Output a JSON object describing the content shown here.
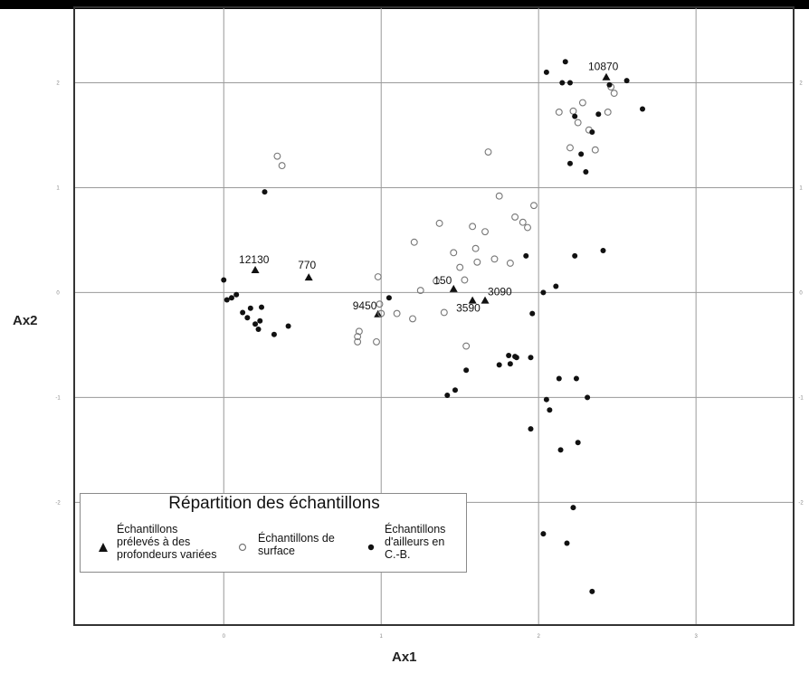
{
  "chart_data": {
    "type": "scatter",
    "xlabel": "Ax1",
    "ylabel": "Ax2",
    "xlim": [
      -0.95,
      3.62
    ],
    "ylim": [
      -3.17,
      2.72
    ],
    "x_ticks": [
      "0",
      "1",
      "2",
      "3"
    ],
    "y_ticks": [
      "2",
      "1",
      "0",
      "-1",
      "-2"
    ],
    "grid": true,
    "legend": {
      "title": "Répartition des échantillons",
      "placement": "bottom-left"
    },
    "series": [
      {
        "name": "Échantillons prélevés à des profondeurs variées",
        "marker": "triangle",
        "color": "#111111",
        "points": [
          {
            "x": 0.2,
            "y": 0.21,
            "label": "12130"
          },
          {
            "x": 0.54,
            "y": 0.14,
            "label": "770"
          },
          {
            "x": 0.98,
            "y": -0.21,
            "label": "9450"
          },
          {
            "x": 1.46,
            "y": 0.03,
            "label": "150"
          },
          {
            "x": 1.58,
            "y": -0.08,
            "label": "3590"
          },
          {
            "x": 1.66,
            "y": -0.08,
            "label": "3090"
          },
          {
            "x": 2.43,
            "y": 2.05,
            "label": "10870"
          }
        ]
      },
      {
        "name": "Échantillons de surface",
        "marker": "open-circle",
        "color": "#777777",
        "points": [
          {
            "x": 0.85,
            "y": -0.42
          },
          {
            "x": 0.85,
            "y": -0.47
          },
          {
            "x": 0.86,
            "y": -0.37
          },
          {
            "x": 0.97,
            "y": -0.47
          },
          {
            "x": 0.98,
            "y": 0.15
          },
          {
            "x": 0.99,
            "y": -0.11
          },
          {
            "x": 1.0,
            "y": -0.2
          },
          {
            "x": 1.1,
            "y": -0.2
          },
          {
            "x": 1.2,
            "y": -0.25
          },
          {
            "x": 1.21,
            "y": 0.48
          },
          {
            "x": 1.25,
            "y": 0.02
          },
          {
            "x": 1.35,
            "y": 0.11
          },
          {
            "x": 1.4,
            "y": -0.19
          },
          {
            "x": 1.46,
            "y": 0.38
          },
          {
            "x": 1.37,
            "y": 0.66
          },
          {
            "x": 1.5,
            "y": 0.24
          },
          {
            "x": 1.53,
            "y": 0.12
          },
          {
            "x": 1.54,
            "y": -0.51
          },
          {
            "x": 1.58,
            "y": 0.63
          },
          {
            "x": 1.6,
            "y": 0.42
          },
          {
            "x": 1.61,
            "y": 0.29
          },
          {
            "x": 1.66,
            "y": 0.58
          },
          {
            "x": 1.68,
            "y": 1.34
          },
          {
            "x": 1.72,
            "y": 0.32
          },
          {
            "x": 1.75,
            "y": 0.92
          },
          {
            "x": 1.82,
            "y": 0.28
          },
          {
            "x": 1.85,
            "y": 0.72
          },
          {
            "x": 1.9,
            "y": 0.67
          },
          {
            "x": 1.93,
            "y": 0.62
          },
          {
            "x": 1.97,
            "y": 0.83
          },
          {
            "x": 0.34,
            "y": 1.3
          },
          {
            "x": 0.37,
            "y": 1.21
          },
          {
            "x": 2.22,
            "y": 1.73
          },
          {
            "x": 2.25,
            "y": 1.62
          },
          {
            "x": 2.28,
            "y": 1.81
          },
          {
            "x": 2.32,
            "y": 1.55
          },
          {
            "x": 2.36,
            "y": 1.36
          },
          {
            "x": 2.44,
            "y": 1.72
          },
          {
            "x": 2.48,
            "y": 1.9
          },
          {
            "x": 2.46,
            "y": 1.96
          },
          {
            "x": 2.2,
            "y": 1.38
          },
          {
            "x": 2.13,
            "y": 1.72
          }
        ]
      },
      {
        "name": "Échantillons d'ailleurs en C.-B.",
        "marker": "filled-circle",
        "color": "#111111",
        "points": [
          {
            "x": 0.0,
            "y": 0.12
          },
          {
            "x": 0.02,
            "y": -0.07
          },
          {
            "x": 0.05,
            "y": -0.05
          },
          {
            "x": 0.08,
            "y": -0.02
          },
          {
            "x": 0.12,
            "y": -0.19
          },
          {
            "x": 0.15,
            "y": -0.24
          },
          {
            "x": 0.17,
            "y": -0.15
          },
          {
            "x": 0.2,
            "y": -0.3
          },
          {
            "x": 0.22,
            "y": -0.35
          },
          {
            "x": 0.23,
            "y": -0.27
          },
          {
            "x": 0.24,
            "y": -0.14
          },
          {
            "x": 0.26,
            "y": 0.96
          },
          {
            "x": 0.32,
            "y": -0.4
          },
          {
            "x": 0.41,
            "y": -0.32
          },
          {
            "x": 1.05,
            "y": -0.05
          },
          {
            "x": 1.42,
            "y": -0.98
          },
          {
            "x": 1.47,
            "y": -0.93
          },
          {
            "x": 1.54,
            "y": -0.74
          },
          {
            "x": 1.75,
            "y": -0.69
          },
          {
            "x": 1.81,
            "y": -0.6
          },
          {
            "x": 1.82,
            "y": -0.68
          },
          {
            "x": 1.86,
            "y": -0.62
          },
          {
            "x": 1.92,
            "y": 0.35
          },
          {
            "x": 1.95,
            "y": -0.62
          },
          {
            "x": 1.95,
            "y": -1.3
          },
          {
            "x": 1.96,
            "y": -0.2
          },
          {
            "x": 2.03,
            "y": 0.0
          },
          {
            "x": 2.05,
            "y": -1.02
          },
          {
            "x": 2.07,
            "y": -1.12
          },
          {
            "x": 2.11,
            "y": 0.06
          },
          {
            "x": 2.13,
            "y": -0.82
          },
          {
            "x": 2.14,
            "y": -1.5
          },
          {
            "x": 2.2,
            "y": 1.23
          },
          {
            "x": 2.22,
            "y": -2.05
          },
          {
            "x": 2.23,
            "y": 1.68
          },
          {
            "x": 2.24,
            "y": -0.82
          },
          {
            "x": 2.25,
            "y": -1.43
          },
          {
            "x": 2.27,
            "y": 1.32
          },
          {
            "x": 2.31,
            "y": -1.0
          },
          {
            "x": 2.3,
            "y": 1.15
          },
          {
            "x": 2.34,
            "y": 1.53
          },
          {
            "x": 2.38,
            "y": 1.7
          },
          {
            "x": 2.41,
            "y": 0.4
          },
          {
            "x": 2.45,
            "y": 1.98
          },
          {
            "x": 2.56,
            "y": 2.02
          },
          {
            "x": 2.66,
            "y": 1.75
          },
          {
            "x": 2.18,
            "y": -2.39
          },
          {
            "x": 2.03,
            "y": -2.3
          },
          {
            "x": 2.05,
            "y": 2.1
          },
          {
            "x": 2.2,
            "y": 2.0
          },
          {
            "x": 2.15,
            "y": 2.0
          },
          {
            "x": 1.85,
            "y": -0.61
          },
          {
            "x": 2.34,
            "y": -2.85
          },
          {
            "x": 2.17,
            "y": 2.2
          },
          {
            "x": 2.23,
            "y": 0.35
          }
        ]
      }
    ]
  }
}
